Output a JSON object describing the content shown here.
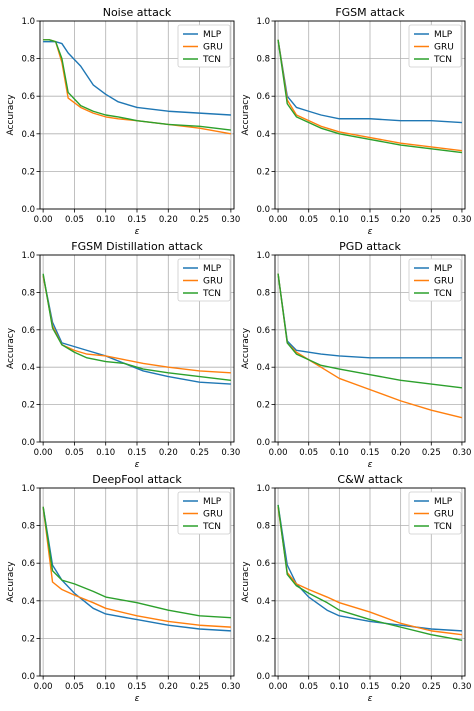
{
  "colors": {
    "MLP": "#1f77b4",
    "GRU": "#ff7f0e",
    "TCN": "#2ca02c"
  },
  "chart_data": [
    {
      "type": "line",
      "title": "Noise attack",
      "xlabel": "ε",
      "ylabel": "Accuracy",
      "xlim": [
        -0.005,
        0.305
      ],
      "ylim": [
        0.0,
        1.0
      ],
      "xticks": [
        "0.00",
        "0.05",
        "0.10",
        "0.15",
        "0.20",
        "0.25",
        "0.30"
      ],
      "yticks": [
        "0.0",
        "0.2",
        "0.4",
        "0.6",
        "0.8",
        "1.0"
      ],
      "grid": true,
      "legend": "top-right",
      "x": [
        0.0,
        0.01,
        0.02,
        0.03,
        0.04,
        0.06,
        0.08,
        0.1,
        0.12,
        0.15,
        0.2,
        0.25,
        0.3
      ],
      "series": [
        {
          "name": "MLP",
          "values": [
            0.89,
            0.89,
            0.89,
            0.88,
            0.83,
            0.76,
            0.66,
            0.61,
            0.57,
            0.54,
            0.52,
            0.51,
            0.5
          ]
        },
        {
          "name": "GRU",
          "values": [
            0.9,
            0.9,
            0.89,
            0.78,
            0.59,
            0.54,
            0.51,
            0.49,
            0.48,
            0.47,
            0.45,
            0.43,
            0.4
          ]
        },
        {
          "name": "TCN",
          "values": [
            0.9,
            0.9,
            0.89,
            0.8,
            0.62,
            0.55,
            0.52,
            0.5,
            0.49,
            0.47,
            0.45,
            0.44,
            0.42
          ]
        }
      ]
    },
    {
      "type": "line",
      "title": "FGSM attack",
      "xlabel": "ε",
      "ylabel": "Accuracy",
      "xlim": [
        -0.005,
        0.305
      ],
      "ylim": [
        0.0,
        1.0
      ],
      "xticks": [
        "0.00",
        "0.05",
        "0.10",
        "0.15",
        "0.20",
        "0.25",
        "0.30"
      ],
      "yticks": [
        "0.0",
        "0.2",
        "0.4",
        "0.6",
        "0.8",
        "1.0"
      ],
      "grid": true,
      "legend": "top-right",
      "x": [
        0.0,
        0.015,
        0.03,
        0.05,
        0.07,
        0.1,
        0.15,
        0.2,
        0.25,
        0.3
      ],
      "series": [
        {
          "name": "MLP",
          "values": [
            0.9,
            0.6,
            0.54,
            0.52,
            0.5,
            0.48,
            0.48,
            0.47,
            0.47,
            0.46
          ]
        },
        {
          "name": "GRU",
          "values": [
            0.9,
            0.58,
            0.5,
            0.47,
            0.44,
            0.41,
            0.38,
            0.35,
            0.33,
            0.31
          ]
        },
        {
          "name": "TCN",
          "values": [
            0.9,
            0.56,
            0.49,
            0.46,
            0.43,
            0.4,
            0.37,
            0.34,
            0.32,
            0.3
          ]
        }
      ]
    },
    {
      "type": "line",
      "title": "FGSM Distillation attack",
      "xlabel": "ε",
      "ylabel": "Accuracy",
      "xlim": [
        -0.005,
        0.305
      ],
      "ylim": [
        0.0,
        1.0
      ],
      "xticks": [
        "0.00",
        "0.05",
        "0.10",
        "0.15",
        "0.20",
        "0.25",
        "0.30"
      ],
      "yticks": [
        "0.0",
        "0.2",
        "0.4",
        "0.6",
        "0.8",
        "1.0"
      ],
      "grid": true,
      "legend": "top-right",
      "x": [
        0.0,
        0.015,
        0.03,
        0.05,
        0.07,
        0.1,
        0.13,
        0.16,
        0.2,
        0.25,
        0.3
      ],
      "series": [
        {
          "name": "MLP",
          "values": [
            0.89,
            0.64,
            0.53,
            0.51,
            0.49,
            0.46,
            0.42,
            0.38,
            0.35,
            0.32,
            0.31
          ]
        },
        {
          "name": "GRU",
          "values": [
            0.89,
            0.62,
            0.52,
            0.49,
            0.47,
            0.46,
            0.44,
            0.42,
            0.4,
            0.38,
            0.37
          ]
        },
        {
          "name": "TCN",
          "values": [
            0.9,
            0.61,
            0.52,
            0.48,
            0.45,
            0.43,
            0.42,
            0.39,
            0.37,
            0.35,
            0.33
          ]
        }
      ]
    },
    {
      "type": "line",
      "title": "PGD attack",
      "xlabel": "ε",
      "ylabel": "Accuracy",
      "xlim": [
        -0.005,
        0.305
      ],
      "ylim": [
        0.0,
        1.0
      ],
      "xticks": [
        "0.00",
        "0.05",
        "0.10",
        "0.15",
        "0.20",
        "0.25",
        "0.30"
      ],
      "yticks": [
        "0.0",
        "0.2",
        "0.4",
        "0.6",
        "0.8",
        "1.0"
      ],
      "grid": true,
      "legend": "top-right",
      "x": [
        0.0,
        0.015,
        0.03,
        0.05,
        0.07,
        0.1,
        0.15,
        0.2,
        0.25,
        0.3
      ],
      "series": [
        {
          "name": "MLP",
          "values": [
            0.9,
            0.54,
            0.49,
            0.48,
            0.47,
            0.46,
            0.45,
            0.45,
            0.45,
            0.45
          ]
        },
        {
          "name": "GRU",
          "values": [
            0.9,
            0.53,
            0.48,
            0.44,
            0.4,
            0.34,
            0.28,
            0.22,
            0.17,
            0.13
          ]
        },
        {
          "name": "TCN",
          "values": [
            0.9,
            0.53,
            0.47,
            0.44,
            0.41,
            0.39,
            0.36,
            0.33,
            0.31,
            0.29
          ]
        }
      ]
    },
    {
      "type": "line",
      "title": "DeepFool attack",
      "xlabel": "ε",
      "ylabel": "Accuracy",
      "xlim": [
        -0.005,
        0.305
      ],
      "ylim": [
        0.0,
        1.0
      ],
      "xticks": [
        "0.00",
        "0.05",
        "0.10",
        "0.15",
        "0.20",
        "0.25",
        "0.30"
      ],
      "yticks": [
        "0.0",
        "0.2",
        "0.4",
        "0.6",
        "0.8",
        "1.0"
      ],
      "grid": true,
      "legend": "top-right",
      "x": [
        0.0,
        0.015,
        0.03,
        0.05,
        0.08,
        0.1,
        0.15,
        0.2,
        0.25,
        0.3
      ],
      "series": [
        {
          "name": "MLP",
          "values": [
            0.9,
            0.59,
            0.51,
            0.44,
            0.36,
            0.33,
            0.3,
            0.27,
            0.25,
            0.24
          ]
        },
        {
          "name": "GRU",
          "values": [
            0.9,
            0.5,
            0.46,
            0.43,
            0.39,
            0.36,
            0.32,
            0.29,
            0.27,
            0.26
          ]
        },
        {
          "name": "TCN",
          "values": [
            0.9,
            0.56,
            0.51,
            0.49,
            0.45,
            0.42,
            0.39,
            0.35,
            0.32,
            0.31
          ]
        }
      ]
    },
    {
      "type": "line",
      "title": "C&W attack",
      "xlabel": "ε",
      "ylabel": "Accuracy",
      "xlim": [
        -0.005,
        0.305
      ],
      "ylim": [
        0.0,
        1.0
      ],
      "xticks": [
        "0.00",
        "0.05",
        "0.10",
        "0.15",
        "0.20",
        "0.25",
        "0.30"
      ],
      "yticks": [
        "0.0",
        "0.2",
        "0.4",
        "0.6",
        "0.8",
        "1.0"
      ],
      "grid": true,
      "legend": "top-right",
      "x": [
        0.0,
        0.015,
        0.03,
        0.05,
        0.08,
        0.1,
        0.15,
        0.2,
        0.25,
        0.3
      ],
      "series": [
        {
          "name": "MLP",
          "values": [
            0.91,
            0.59,
            0.49,
            0.42,
            0.35,
            0.32,
            0.29,
            0.27,
            0.25,
            0.24
          ]
        },
        {
          "name": "GRU",
          "values": [
            0.9,
            0.55,
            0.49,
            0.46,
            0.42,
            0.39,
            0.34,
            0.28,
            0.24,
            0.22
          ]
        },
        {
          "name": "TCN",
          "values": [
            0.91,
            0.54,
            0.48,
            0.44,
            0.39,
            0.35,
            0.3,
            0.26,
            0.22,
            0.19
          ]
        }
      ]
    }
  ]
}
